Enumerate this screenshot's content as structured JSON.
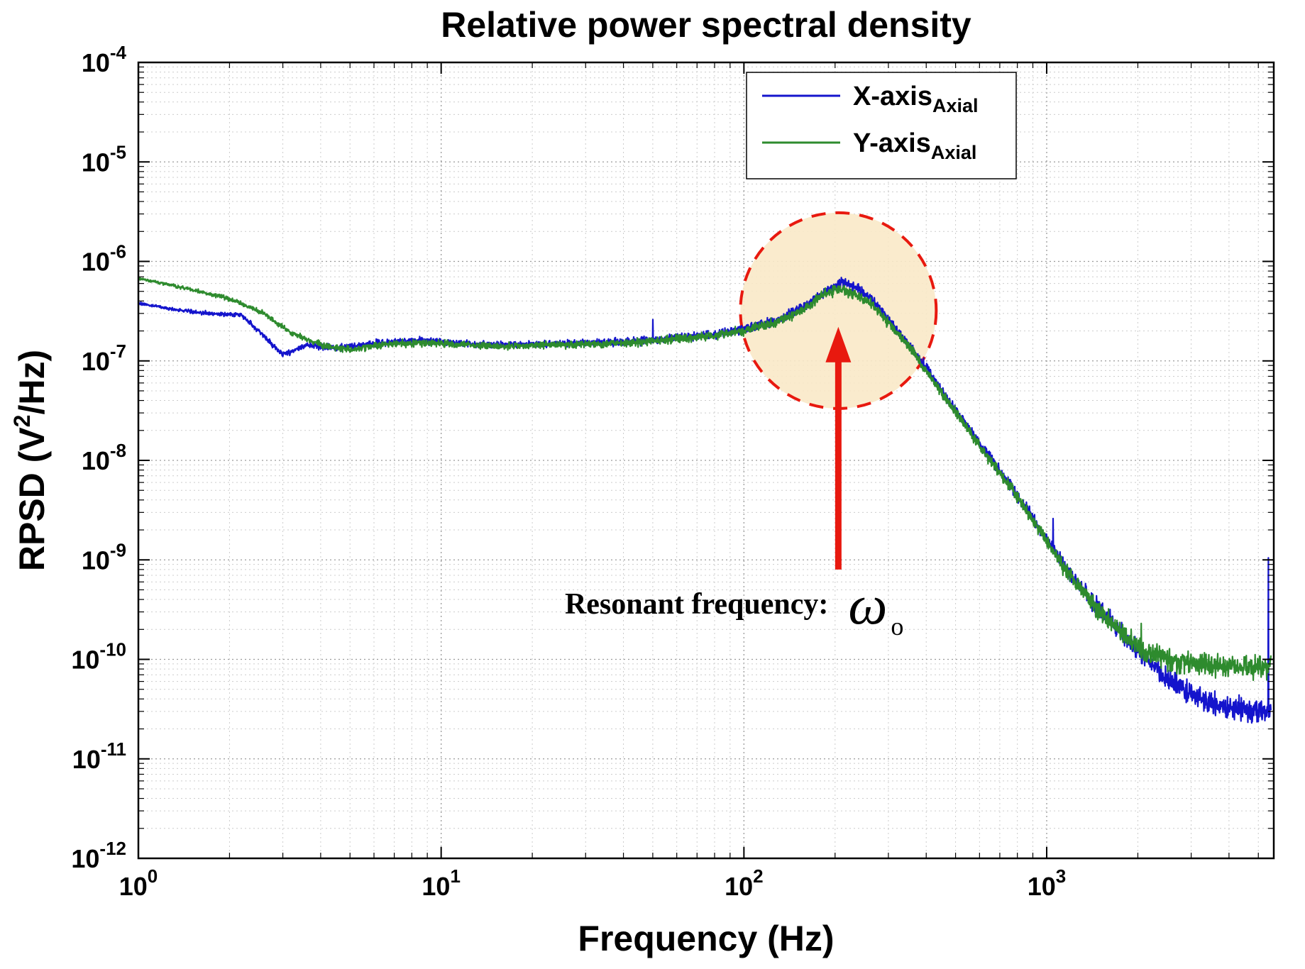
{
  "chart_data": {
    "type": "line",
    "title": "Relative power spectral density",
    "xlabel": "Frequency (Hz)",
    "ylabel": "RPSD (V2/Hz)",
    "ylabel_parts": {
      "pre": "RPSD (V",
      "sup": "2",
      "post": "/Hz)"
    },
    "x_scale": "log",
    "y_scale": "log",
    "xlim": [
      1,
      5623
    ],
    "ylim": [
      1e-12,
      0.0001
    ],
    "x_tick_exponents": [
      0,
      1,
      2,
      3
    ],
    "y_tick_exponents": [
      -4,
      -5,
      -6,
      -7,
      -8,
      -9,
      -10,
      -11,
      -12
    ],
    "grid": true,
    "legend": {
      "position": "top-right",
      "entries": [
        {
          "label": "X-axis",
          "sub": "Axial",
          "color": "#1414CC"
        },
        {
          "label": "Y-axis",
          "sub": "Axial",
          "color": "#2E8B2E"
        }
      ]
    },
    "noise_profile": [
      [
        0,
        0.012
      ],
      [
        0.45,
        0.025
      ],
      [
        0.8,
        0.035
      ],
      [
        1.3,
        0.03
      ],
      [
        1.8,
        0.04
      ],
      [
        2.1,
        0.045
      ],
      [
        2.35,
        0.05
      ],
      [
        2.6,
        0.045
      ],
      [
        2.85,
        0.05
      ],
      [
        3.05,
        0.07
      ],
      [
        3.25,
        0.09
      ],
      [
        3.45,
        0.11
      ],
      [
        3.74,
        0.11
      ]
    ],
    "series": [
      {
        "name": "X-axis Axial",
        "slug": "x-axis-axial",
        "color": "#1414CC",
        "seed": 20,
        "spikes": [
          [
            50,
            2.6e-07
          ],
          [
            1050,
            2.6e-09
          ],
          [
            5400,
            1.05e-09
          ]
        ],
        "anchors": [
          [
            1,
            3.8e-07
          ],
          [
            1.3,
            3.3e-07
          ],
          [
            1.7,
            3e-07
          ],
          [
            2.2,
            2.9e-07
          ],
          [
            3.0,
            1.15e-07
          ],
          [
            3.6,
            1.45e-07
          ],
          [
            4.5,
            1.35e-07
          ],
          [
            6,
            1.5e-07
          ],
          [
            8,
            1.6e-07
          ],
          [
            10,
            1.55e-07
          ],
          [
            15,
            1.45e-07
          ],
          [
            25,
            1.5e-07
          ],
          [
            40,
            1.55e-07
          ],
          [
            60,
            1.7e-07
          ],
          [
            80,
            1.85e-07
          ],
          [
            100,
            2.1e-07
          ],
          [
            130,
            2.6e-07
          ],
          [
            160,
            3.6e-07
          ],
          [
            190,
            5.2e-07
          ],
          [
            210,
            6.2e-07
          ],
          [
            235,
            5.4e-07
          ],
          [
            265,
            4.1e-07
          ],
          [
            300,
            2.6e-07
          ],
          [
            350,
            1.5e-07
          ],
          [
            400,
            8.5e-08
          ],
          [
            500,
            3.2e-08
          ],
          [
            600,
            1.5e-08
          ],
          [
            700,
            8e-09
          ],
          [
            800,
            4.5e-09
          ],
          [
            1000,
            1.6e-09
          ],
          [
            1200,
            7e-10
          ],
          [
            1500,
            3.2e-10
          ],
          [
            2000,
            1.2e-10
          ],
          [
            2500,
            6.5e-11
          ],
          [
            3000,
            4.5e-11
          ],
          [
            3500,
            3.6e-11
          ],
          [
            4000,
            3.2e-11
          ],
          [
            5000,
            3e-11
          ],
          [
            5500,
            3e-11
          ]
        ]
      },
      {
        "name": "Y-axis Axial",
        "slug": "y-axis-axial",
        "color": "#2E8B2E",
        "seed": 77,
        "spikes": [
          [
            2050,
            2.3e-10
          ]
        ],
        "anchors": [
          [
            1,
            6.8e-07
          ],
          [
            1.5,
            5.2e-07
          ],
          [
            2,
            4.2e-07
          ],
          [
            2.6,
            3e-07
          ],
          [
            3.2,
            1.9e-07
          ],
          [
            4,
            1.45e-07
          ],
          [
            5,
            1.3e-07
          ],
          [
            7,
            1.5e-07
          ],
          [
            10,
            1.5e-07
          ],
          [
            15,
            1.4e-07
          ],
          [
            25,
            1.45e-07
          ],
          [
            40,
            1.5e-07
          ],
          [
            60,
            1.65e-07
          ],
          [
            80,
            1.8e-07
          ],
          [
            100,
            2e-07
          ],
          [
            130,
            2.5e-07
          ],
          [
            160,
            3.4e-07
          ],
          [
            185,
            4.8e-07
          ],
          [
            205,
            5.3e-07
          ],
          [
            235,
            4.6e-07
          ],
          [
            265,
            3.7e-07
          ],
          [
            300,
            2.4e-07
          ],
          [
            350,
            1.4e-07
          ],
          [
            400,
            8e-08
          ],
          [
            500,
            3e-08
          ],
          [
            600,
            1.4e-08
          ],
          [
            700,
            7.5e-09
          ],
          [
            800,
            4.3e-09
          ],
          [
            1000,
            1.5e-09
          ],
          [
            1200,
            6.8e-10
          ],
          [
            1500,
            3e-10
          ],
          [
            2000,
            1.3e-10
          ],
          [
            2500,
            1e-10
          ],
          [
            3000,
            9e-11
          ],
          [
            3500,
            8.6e-11
          ],
          [
            4000,
            8.5e-11
          ],
          [
            5000,
            8.5e-11
          ],
          [
            5500,
            9e-11
          ]
        ]
      }
    ],
    "annotations": {
      "highlight_circle": {
        "center_hz": 205,
        "center_v": 3.2e-07,
        "radius_px": 138,
        "fill": "#FAE9C8",
        "fill_opacity": 0.9,
        "stroke": "#E8190F"
      },
      "arrow": {
        "f_hz": 205,
        "from_v": 8e-10,
        "to_v": 2.2e-07,
        "color": "#E8190F"
      },
      "label": {
        "text": "Resonant frequency:",
        "symbol": "ω",
        "symbol_sub": "o"
      }
    }
  }
}
